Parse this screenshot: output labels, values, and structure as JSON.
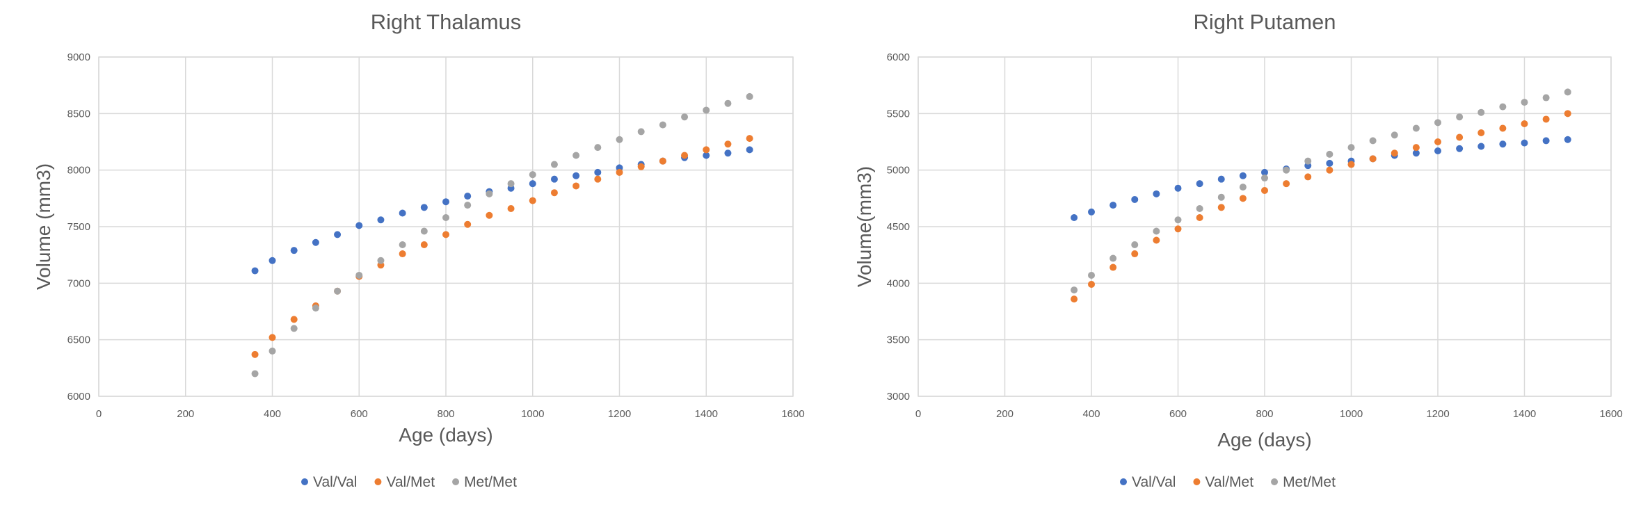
{
  "chart_data": [
    {
      "type": "scatter",
      "title": "Right Thalamus",
      "xlabel": "Age (days)",
      "ylabel": "Volume (mm3)",
      "xlim": [
        0,
        1600
      ],
      "ylim": [
        6000,
        9000
      ],
      "xticks": [
        "0",
        "200",
        "400",
        "600",
        "800",
        "1000",
        "1200",
        "1400",
        "1600"
      ],
      "yticks": [
        "6000",
        "6500",
        "7000",
        "7500",
        "8000",
        "8500",
        "9000"
      ],
      "grid": true,
      "legend_position": "bottom",
      "series": [
        {
          "name": "Val/Val",
          "color": "#4472C4",
          "points": [
            [
              360,
              7110
            ],
            [
              400,
              7200
            ],
            [
              450,
              7290
            ],
            [
              500,
              7360
            ],
            [
              550,
              7430
            ],
            [
              600,
              7510
            ],
            [
              650,
              7560
            ],
            [
              700,
              7620
            ],
            [
              750,
              7670
            ],
            [
              800,
              7720
            ],
            [
              850,
              7770
            ],
            [
              900,
              7810
            ],
            [
              950,
              7840
            ],
            [
              1000,
              7880
            ],
            [
              1050,
              7920
            ],
            [
              1100,
              7950
            ],
            [
              1150,
              7980
            ],
            [
              1200,
              8020
            ],
            [
              1250,
              8050
            ],
            [
              1300,
              8080
            ],
            [
              1350,
              8110
            ],
            [
              1400,
              8130
            ],
            [
              1450,
              8150
            ],
            [
              1500,
              8180
            ]
          ]
        },
        {
          "name": "Val/Met",
          "color": "#ED7D31",
          "points": [
            [
              360,
              6370
            ],
            [
              400,
              6520
            ],
            [
              450,
              6680
            ],
            [
              500,
              6800
            ],
            [
              550,
              6930
            ],
            [
              600,
              7060
            ],
            [
              650,
              7160
            ],
            [
              700,
              7260
            ],
            [
              750,
              7340
            ],
            [
              800,
              7430
            ],
            [
              850,
              7520
            ],
            [
              900,
              7600
            ],
            [
              950,
              7660
            ],
            [
              1000,
              7730
            ],
            [
              1050,
              7800
            ],
            [
              1100,
              7860
            ],
            [
              1150,
              7920
            ],
            [
              1200,
              7980
            ],
            [
              1250,
              8030
            ],
            [
              1300,
              8080
            ],
            [
              1350,
              8130
            ],
            [
              1400,
              8180
            ],
            [
              1450,
              8230
            ],
            [
              1500,
              8280
            ]
          ]
        },
        {
          "name": "Met/Met",
          "color": "#A5A5A5",
          "points": [
            [
              360,
              6200
            ],
            [
              400,
              6400
            ],
            [
              450,
              6600
            ],
            [
              500,
              6780
            ],
            [
              550,
              6930
            ],
            [
              600,
              7070
            ],
            [
              650,
              7200
            ],
            [
              700,
              7340
            ],
            [
              750,
              7460
            ],
            [
              800,
              7580
            ],
            [
              850,
              7690
            ],
            [
              900,
              7790
            ],
            [
              950,
              7880
            ],
            [
              1000,
              7960
            ],
            [
              1050,
              8050
            ],
            [
              1100,
              8130
            ],
            [
              1150,
              8200
            ],
            [
              1200,
              8270
            ],
            [
              1250,
              8340
            ],
            [
              1300,
              8400
            ],
            [
              1350,
              8470
            ],
            [
              1400,
              8530
            ],
            [
              1450,
              8590
            ],
            [
              1500,
              8650
            ]
          ]
        }
      ]
    },
    {
      "type": "scatter",
      "title": "Right Putamen",
      "xlabel": "Age (days)",
      "ylabel": "Volume(mm3)",
      "xlim": [
        0,
        1600
      ],
      "ylim": [
        3000,
        6000
      ],
      "xticks": [
        "0",
        "200",
        "400",
        "600",
        "800",
        "1000",
        "1200",
        "1400",
        "1600"
      ],
      "yticks": [
        "3000",
        "3500",
        "4000",
        "4500",
        "5000",
        "5500",
        "6000"
      ],
      "grid": true,
      "legend_position": "bottom",
      "series": [
        {
          "name": "Val/Val",
          "color": "#4472C4",
          "points": [
            [
              360,
              4580
            ],
            [
              400,
              4630
            ],
            [
              450,
              4690
            ],
            [
              500,
              4740
            ],
            [
              550,
              4790
            ],
            [
              600,
              4840
            ],
            [
              650,
              4880
            ],
            [
              700,
              4920
            ],
            [
              750,
              4950
            ],
            [
              800,
              4980
            ],
            [
              850,
              5010
            ],
            [
              900,
              5040
            ],
            [
              950,
              5060
            ],
            [
              1000,
              5080
            ],
            [
              1050,
              5100
            ],
            [
              1100,
              5130
            ],
            [
              1150,
              5150
            ],
            [
              1200,
              5170
            ],
            [
              1250,
              5190
            ],
            [
              1300,
              5210
            ],
            [
              1350,
              5230
            ],
            [
              1400,
              5240
            ],
            [
              1450,
              5260
            ],
            [
              1500,
              5270
            ]
          ]
        },
        {
          "name": "Val/Met",
          "color": "#ED7D31",
          "points": [
            [
              360,
              3860
            ],
            [
              400,
              3990
            ],
            [
              450,
              4140
            ],
            [
              500,
              4260
            ],
            [
              550,
              4380
            ],
            [
              600,
              4480
            ],
            [
              650,
              4580
            ],
            [
              700,
              4670
            ],
            [
              750,
              4750
            ],
            [
              800,
              4820
            ],
            [
              850,
              4880
            ],
            [
              900,
              4940
            ],
            [
              950,
              5000
            ],
            [
              1000,
              5050
            ],
            [
              1050,
              5100
            ],
            [
              1100,
              5150
            ],
            [
              1150,
              5200
            ],
            [
              1200,
              5250
            ],
            [
              1250,
              5290
            ],
            [
              1300,
              5330
            ],
            [
              1350,
              5370
            ],
            [
              1400,
              5410
            ],
            [
              1450,
              5450
            ],
            [
              1500,
              5500
            ]
          ]
        },
        {
          "name": "Met/Met",
          "color": "#A5A5A5",
          "points": [
            [
              360,
              3940
            ],
            [
              400,
              4070
            ],
            [
              450,
              4220
            ],
            [
              500,
              4340
            ],
            [
              550,
              4460
            ],
            [
              600,
              4560
            ],
            [
              650,
              4660
            ],
            [
              700,
              4760
            ],
            [
              750,
              4850
            ],
            [
              800,
              4930
            ],
            [
              850,
              5000
            ],
            [
              900,
              5080
            ],
            [
              950,
              5140
            ],
            [
              1000,
              5200
            ],
            [
              1050,
              5260
            ],
            [
              1100,
              5310
            ],
            [
              1150,
              5370
            ],
            [
              1200,
              5420
            ],
            [
              1250,
              5470
            ],
            [
              1300,
              5510
            ],
            [
              1350,
              5560
            ],
            [
              1400,
              5600
            ],
            [
              1450,
              5640
            ],
            [
              1500,
              5690
            ]
          ]
        }
      ]
    }
  ]
}
